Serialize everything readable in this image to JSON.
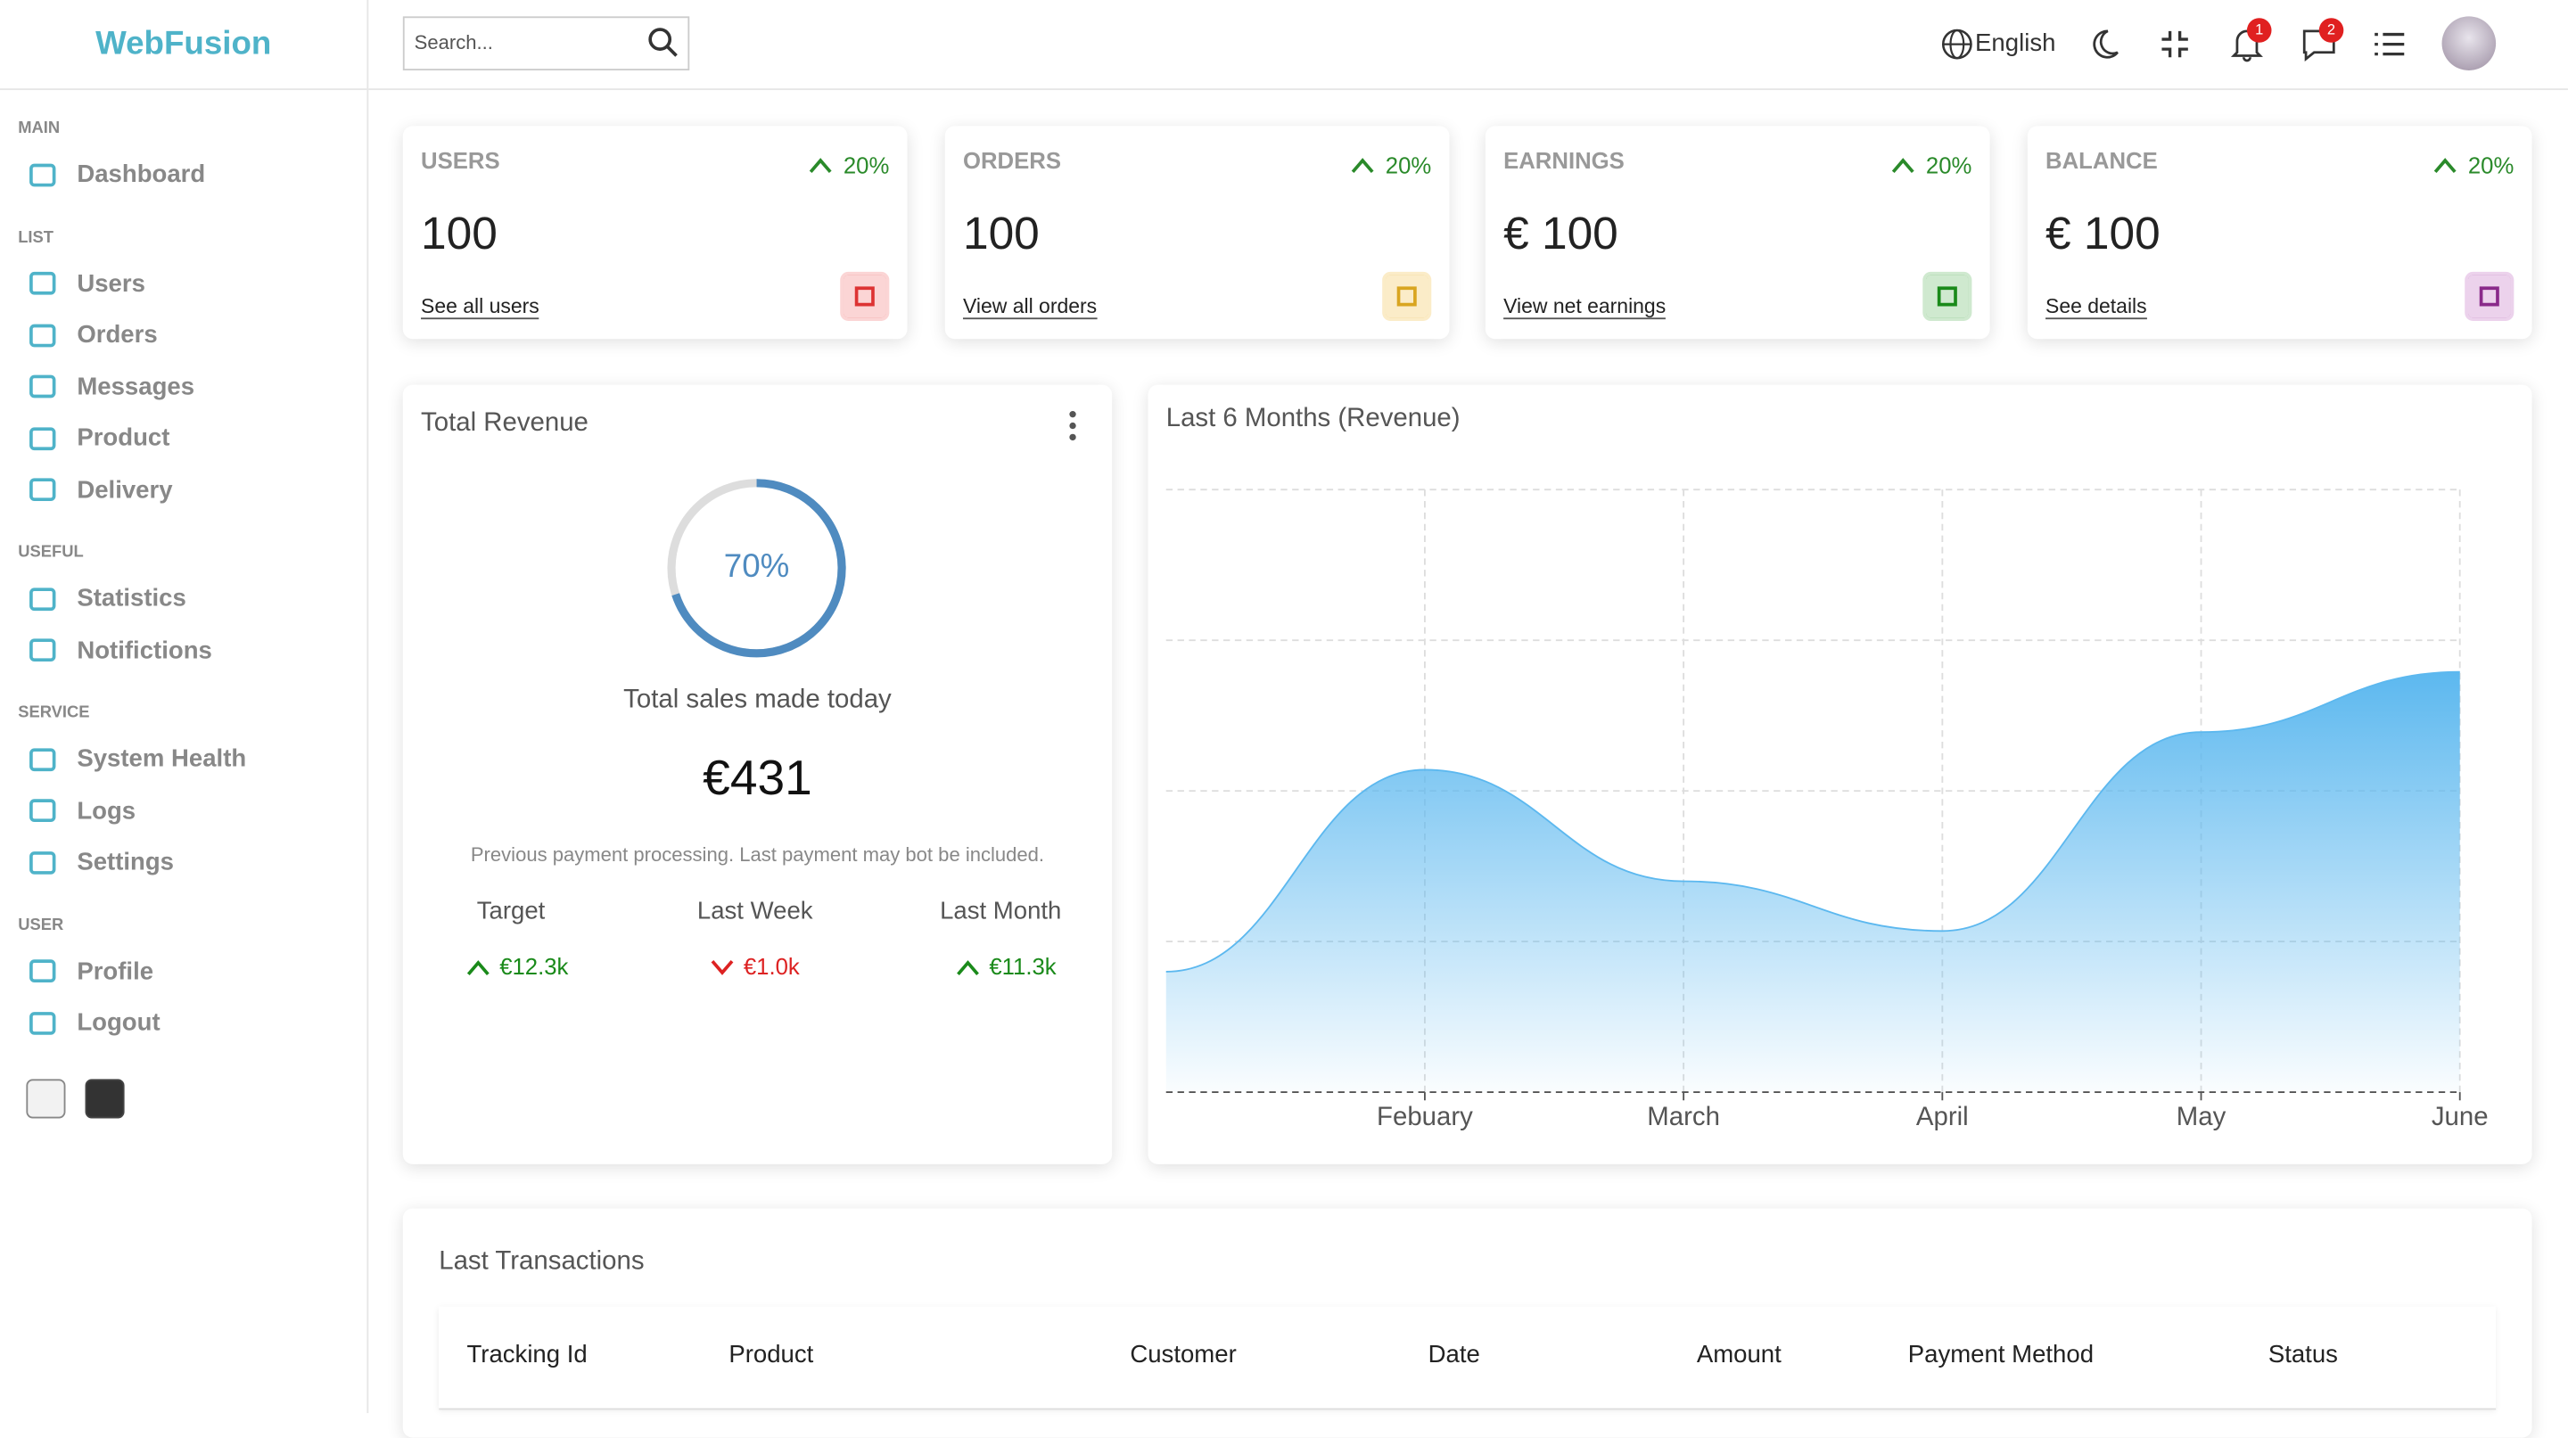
{
  "brand": "WebFusion",
  "search_placeholder": "Search...",
  "header": {
    "language": "English",
    "notifications_badge": "1",
    "messages_badge": "2"
  },
  "sidebar": [
    {
      "title": "MAIN",
      "items": [
        "Dashboard"
      ]
    },
    {
      "title": "LIST",
      "items": [
        "Users",
        "Orders",
        "Messages",
        "Product",
        "Delivery"
      ]
    },
    {
      "title": "USEFUL",
      "items": [
        "Statistics",
        "Notifictions"
      ]
    },
    {
      "title": "SERVICE",
      "items": [
        "System Health",
        "Logs",
        "Settings"
      ]
    },
    {
      "title": "USER",
      "items": [
        "Profile",
        "Logout"
      ]
    }
  ],
  "widgets": [
    {
      "title": "USERS",
      "change": "20%",
      "value": "100",
      "link": "See all users"
    },
    {
      "title": "ORDERS",
      "change": "20%",
      "value": "100",
      "link": "View all orders"
    },
    {
      "title": "EARNINGS",
      "change": "20%",
      "value": "€ 100",
      "link": "View net earnings"
    },
    {
      "title": "BALANCE",
      "change": "20%",
      "value": "€ 100",
      "link": "See details"
    }
  ],
  "revenue": {
    "title": "Total Revenue",
    "progress": {
      "value": 70,
      "label": "70%"
    },
    "subtitle": "Total sales made today",
    "amount": "€431",
    "note": "Previous payment processing. Last payment may bot be included.",
    "summary": [
      {
        "title": "Target",
        "amount": "€12.3k"
      },
      {
        "title": "Last Week",
        "amount": "€1.0k"
      },
      {
        "title": "Last Month",
        "amount": "€11.3k"
      }
    ]
  },
  "chart_data": {
    "type": "area",
    "title": "Last 6 Months (Revenue)",
    "categories": [
      null,
      "Febuary",
      "March",
      "April",
      "May",
      "June"
    ],
    "values": [
      800,
      2140,
      1400,
      1070,
      2390,
      2790
    ],
    "color": "#5cb8ef",
    "ylim": [
      0,
      4000
    ],
    "grid": true
  },
  "transactions": {
    "title": "Last Transactions",
    "columns": [
      "Tracking Id",
      "Product",
      "Customer",
      "Date",
      "Amount",
      "Payment Method",
      "Status"
    ]
  }
}
